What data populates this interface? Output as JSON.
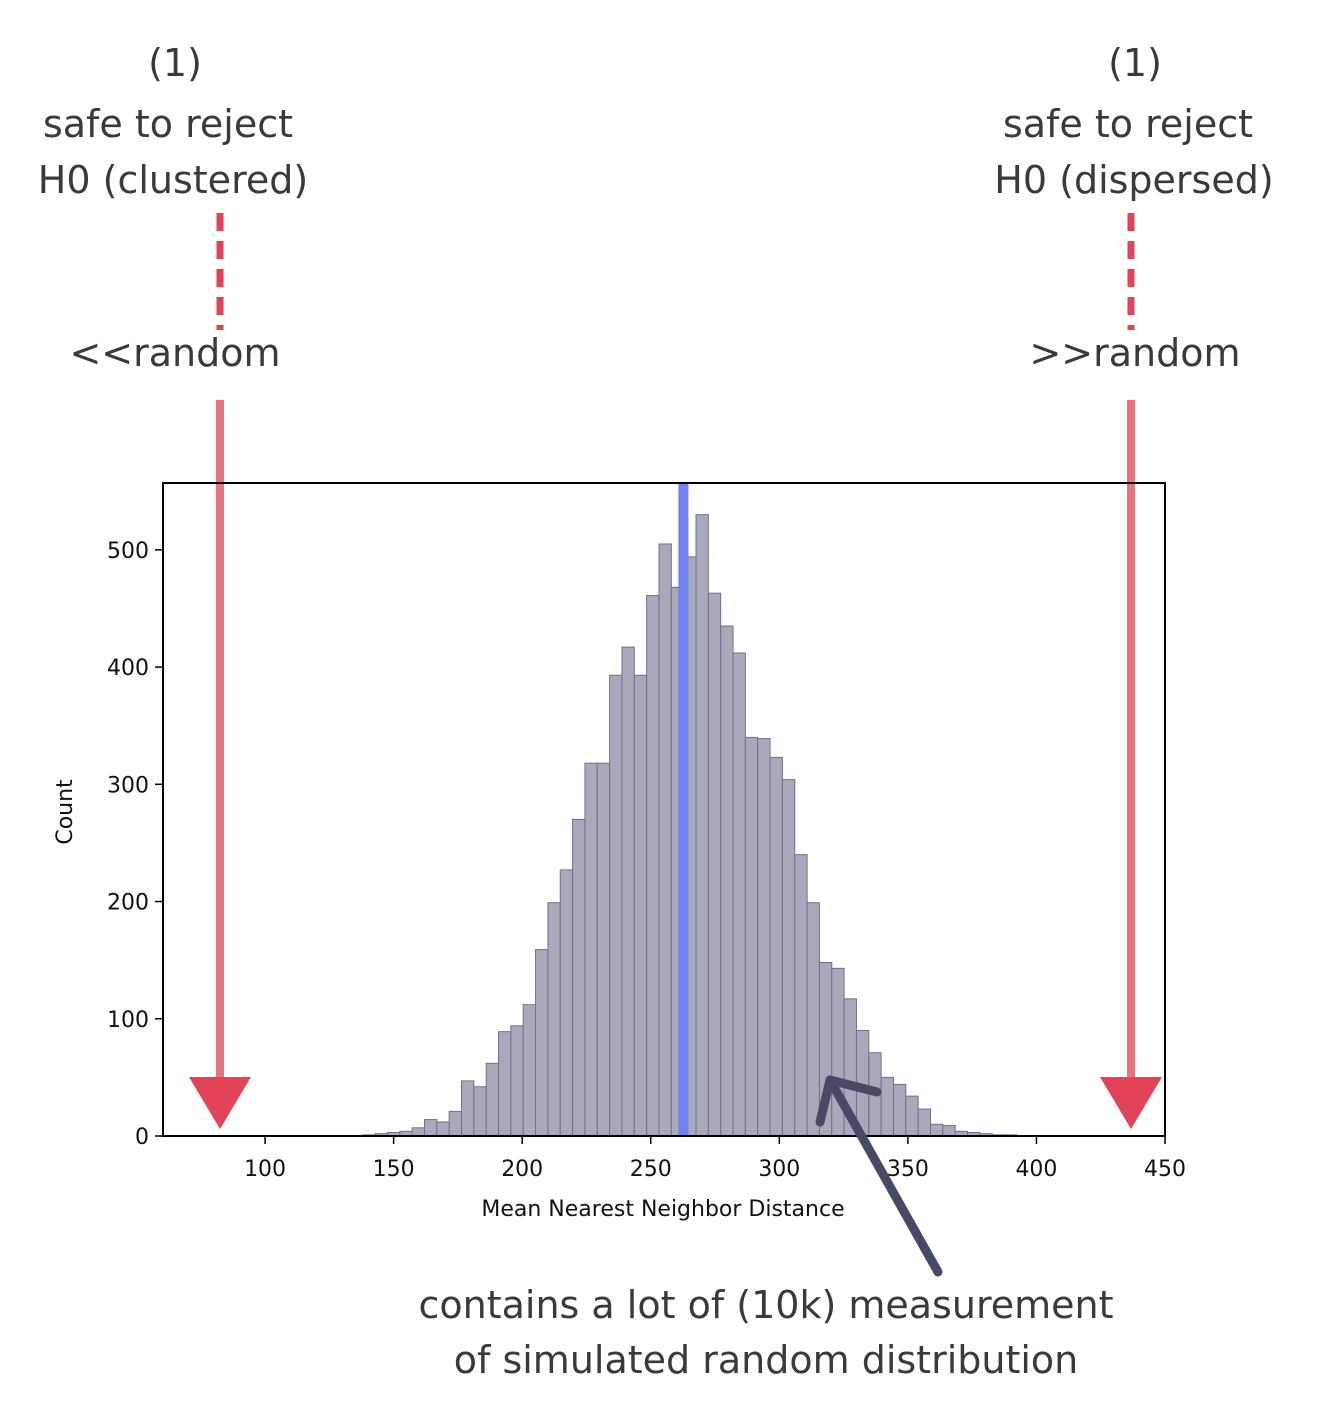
{
  "chart_data": {
    "type": "histogram",
    "annotations": [
      {
        "lines": [
          "(1)",
          "safe to reject",
          "H0 (clustered)"
        ],
        "label": "<<random"
      },
      {
        "lines": [
          "(1)",
          "safe to reject",
          "H0 (dispersed)"
        ],
        "label": ">>random"
      }
    ],
    "note": [
      "contains a lot of (10k) measurement",
      "of simulated random distribution"
    ],
    "xlabel": "Mean Nearest Neighbor Distance",
    "ylabel": "Count",
    "bins": [
      138,
      142.8,
      147.6,
      152.4,
      157.2,
      162,
      166.8,
      171.6,
      176.4,
      181.2,
      186,
      190.8,
      195.6,
      200.4,
      205.2,
      210,
      214.8,
      219.6,
      224.4,
      229.2,
      234,
      238.8,
      243.6,
      248.4,
      253.2,
      258,
      262.8,
      267.6,
      272.4,
      277.2,
      282,
      286.8,
      291.6,
      296.4,
      301.2,
      306,
      310.8,
      315.6,
      320.4,
      325.2,
      330,
      334.8,
      339.6,
      344.4,
      349.2,
      354,
      358.8,
      363.6,
      368.4,
      373.2,
      378,
      382.8,
      387.6,
      392.4
    ],
    "values": [
      1,
      2,
      3,
      4,
      7,
      14,
      12,
      21,
      47,
      42,
      62,
      89,
      94,
      112,
      159,
      199,
      227,
      270,
      318,
      318,
      393,
      417,
      393,
      461,
      505,
      468,
      494,
      530,
      463,
      435,
      412,
      340,
      339,
      323,
      304,
      240,
      199,
      148,
      143,
      117,
      90,
      71,
      50,
      44,
      34,
      23,
      10,
      9,
      4,
      3,
      2,
      1,
      1
    ],
    "color": "#a8aabb",
    "edgecolor": "#6f7189",
    "vline": {
      "value": 262.7,
      "color": "#6f80f0"
    },
    "xlim": [
      60.3,
      450
    ],
    "xticks": [
      100,
      150,
      200,
      250,
      300,
      350,
      400,
      450
    ],
    "ylim": [
      0,
      557
    ],
    "yticks": [
      0,
      100,
      200,
      300,
      400,
      500
    ]
  }
}
